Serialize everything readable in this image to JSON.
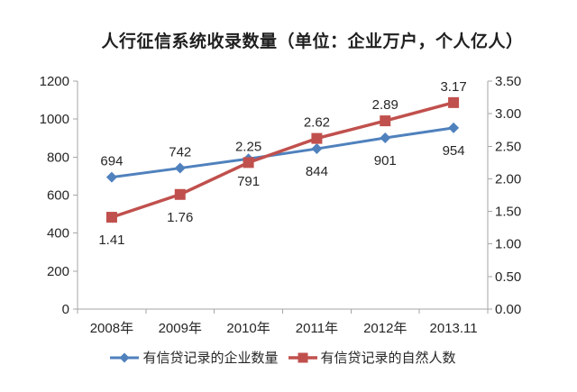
{
  "title": "人行征信系统收录数量（单位：企业万户，个人亿人）",
  "chart_data": {
    "type": "line",
    "title": "人行征信系统收录数量（单位：企业万户，个人亿人）",
    "categories": [
      "2008年",
      "2009年",
      "2010年",
      "2011年",
      "2012年",
      "2013.11"
    ],
    "series": [
      {
        "name": "有信贷记录的企业数量",
        "axis": "left",
        "color": "#4F81BD",
        "marker": "diamond",
        "values": [
          694,
          742,
          791,
          844,
          901,
          954
        ],
        "label_positions": [
          "above",
          "above",
          "below",
          "below",
          "below",
          "below"
        ]
      },
      {
        "name": "有信贷记录的自然人数",
        "axis": "right",
        "color": "#C0504D",
        "marker": "square",
        "values": [
          1.41,
          1.76,
          2.25,
          2.62,
          2.89,
          3.17
        ],
        "label_positions": [
          "below",
          "below",
          "above",
          "above",
          "above",
          "above"
        ]
      }
    ],
    "left_axis": {
      "min": 0,
      "max": 1200,
      "step": 200,
      "tick_labels": [
        "0",
        "200",
        "400",
        "600",
        "800",
        "1000",
        "1200"
      ]
    },
    "right_axis": {
      "min": 0,
      "max": 3.5,
      "step": 0.5,
      "tick_labels": [
        "0.00",
        "0.50",
        "1.00",
        "1.50",
        "2.00",
        "2.50",
        "3.00",
        "3.50"
      ]
    },
    "grid": false,
    "legend_position": "bottom"
  },
  "colors": {
    "series_enterprise": "#4F81BD",
    "series_person": "#C0504D",
    "axis_line": "#A6A6A6",
    "text": "#262626",
    "background": "#FFFFFF"
  }
}
